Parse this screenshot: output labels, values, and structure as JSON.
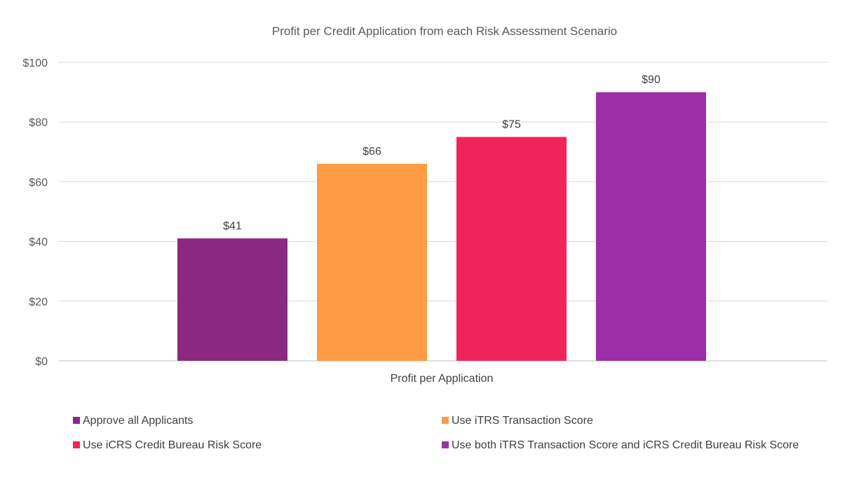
{
  "chart_data": {
    "type": "bar",
    "title": "Profit per Credit Application from each Risk Assessment Scenario",
    "categories": [
      "Profit per Application"
    ],
    "series": [
      {
        "name": "Approve all Applicants",
        "values": [
          41
        ],
        "color": "#8B2880",
        "label": "$41"
      },
      {
        "name": "Use iTRS Transaction Score",
        "values": [
          66
        ],
        "color": "#FF9B45",
        "label": "$66"
      },
      {
        "name": "Use iCRS Credit Bureau Risk Score",
        "values": [
          75
        ],
        "color": "#F0245A",
        "label": "$75"
      },
      {
        "name": "Use both iTRS Transaction Score and iCRS Credit Bureau Risk Score",
        "values": [
          90
        ],
        "color": "#9C2EA8",
        "label": "$90"
      }
    ],
    "yticks": [
      "$0",
      "$20",
      "$40",
      "$60",
      "$80",
      "$100"
    ],
    "ylim": [
      0,
      100
    ],
    "xlabel": "",
    "ylabel": "",
    "grid": true,
    "legend_position": "bottom"
  }
}
